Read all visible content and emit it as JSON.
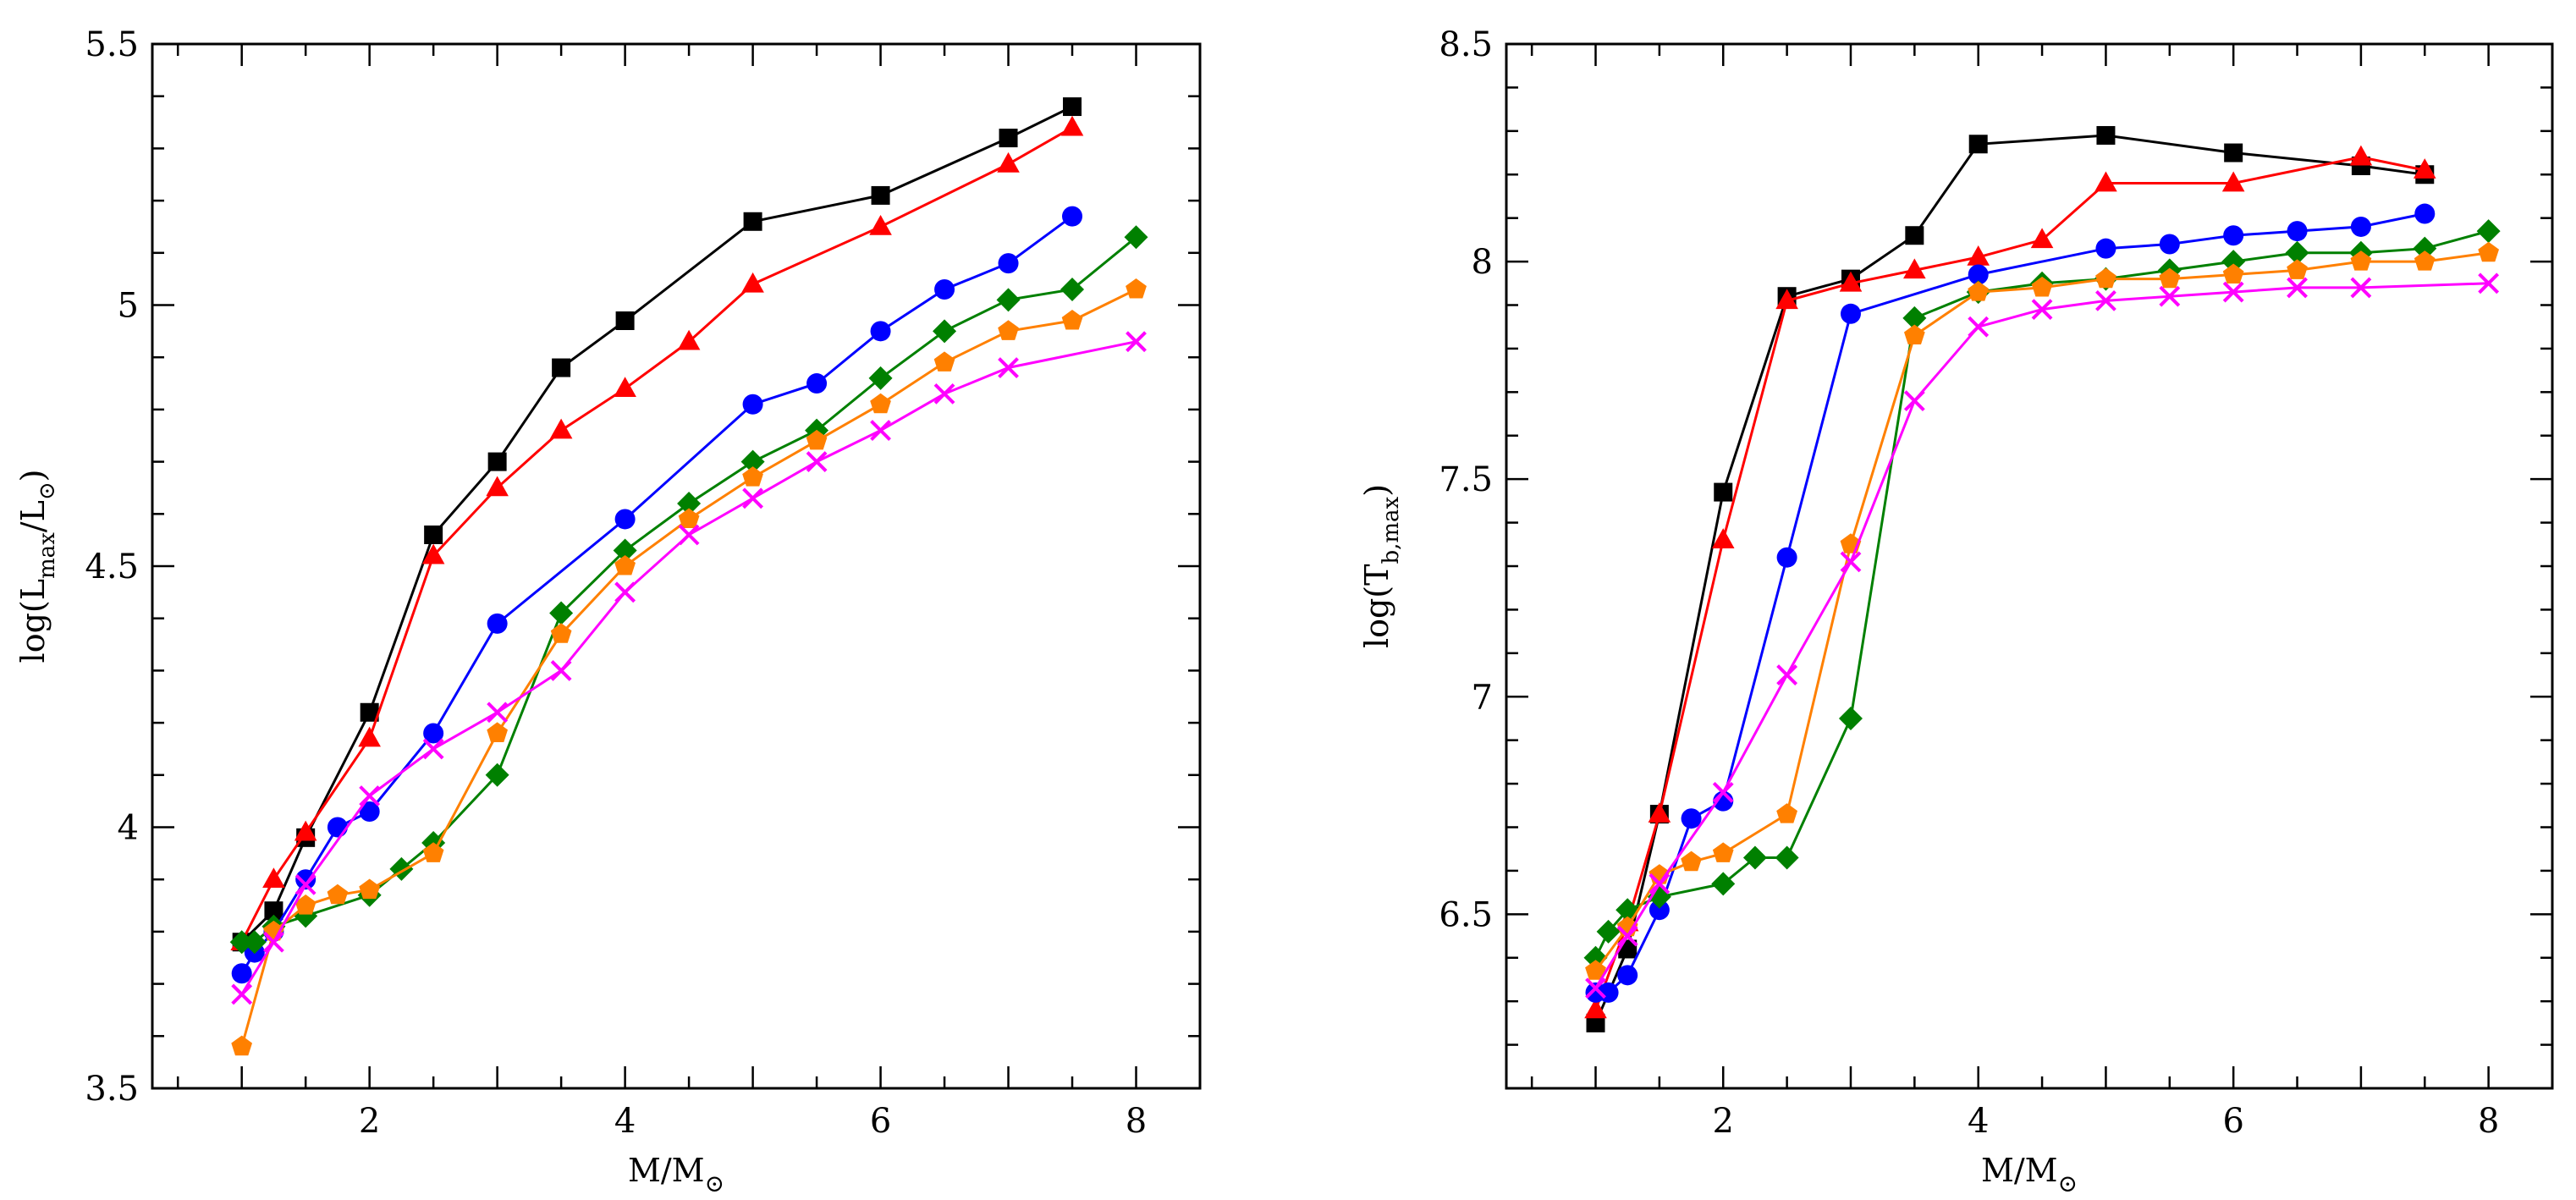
{
  "chart_data": [
    {
      "type": "line",
      "id": "left",
      "xlabel": "M/M",
      "xlabel_sub": "⊙",
      "ylabel": {
        "prefix": "log(L",
        "sub1": "max",
        "mid": "/L",
        "sub2": "⊙",
        "suffix": ")"
      },
      "xlim": [
        0.3,
        8.5
      ],
      "ylim": [
        3.5,
        5.5
      ],
      "x_major_ticks": [
        2,
        4,
        6,
        8
      ],
      "x_tick_labels": [
        "2",
        "4",
        "6",
        "8"
      ],
      "y_major_ticks": [
        3.5,
        4,
        4.5,
        5,
        5.5
      ],
      "y_tick_labels": [
        "3.5",
        "4",
        "4.5",
        "5",
        "5.5"
      ],
      "x_minor_step": 0.5,
      "y_minor_step": 0.1,
      "series": [
        {
          "name": "black-squares",
          "color": "#000000",
          "marker": "square",
          "x": [
            1.0,
            1.25,
            1.5,
            2.0,
            2.5,
            3.0,
            3.5,
            4.0,
            5.0,
            6.0,
            7.0,
            7.5
          ],
          "y": [
            3.78,
            3.84,
            3.98,
            4.22,
            4.56,
            4.7,
            4.88,
            4.97,
            5.16,
            5.21,
            5.32,
            5.38
          ]
        },
        {
          "name": "red-triangles",
          "color": "#ff0000",
          "marker": "triangle",
          "x": [
            1.0,
            1.25,
            1.5,
            2.0,
            2.5,
            3.0,
            3.5,
            4.0,
            4.5,
            5.0,
            6.0,
            7.0,
            7.5
          ],
          "y": [
            3.78,
            3.9,
            3.99,
            4.17,
            4.52,
            4.65,
            4.76,
            4.84,
            4.93,
            5.04,
            5.15,
            5.27,
            5.34
          ]
        },
        {
          "name": "blue-circles",
          "color": "#0000ff",
          "marker": "circle",
          "x": [
            1.0,
            1.1,
            1.25,
            1.5,
            1.75,
            2.0,
            2.5,
            3.0,
            4.0,
            5.0,
            5.5,
            6.0,
            6.5,
            7.0,
            7.5
          ],
          "y": [
            3.72,
            3.76,
            3.8,
            3.9,
            4.0,
            4.03,
            4.18,
            4.39,
            4.59,
            4.81,
            4.85,
            4.95,
            5.03,
            5.08,
            5.17
          ]
        },
        {
          "name": "green-diamonds",
          "color": "#008000",
          "marker": "diamond",
          "x": [
            1.0,
            1.1,
            1.25,
            1.5,
            2.0,
            2.25,
            2.5,
            3.0,
            3.5,
            4.0,
            4.5,
            5.0,
            5.5,
            6.0,
            6.5,
            7.0,
            7.5,
            8.0
          ],
          "y": [
            3.78,
            3.78,
            3.81,
            3.83,
            3.87,
            3.92,
            3.97,
            4.1,
            4.41,
            4.53,
            4.62,
            4.7,
            4.76,
            4.86,
            4.95,
            5.01,
            5.03,
            5.13
          ]
        },
        {
          "name": "orange-pentagons",
          "color": "#ff8000",
          "marker": "pentagon",
          "x": [
            1.0,
            1.25,
            1.5,
            1.75,
            2.0,
            2.5,
            3.0,
            3.5,
            4.0,
            4.5,
            5.0,
            5.5,
            6.0,
            6.5,
            7.0,
            7.5,
            8.0
          ],
          "y": [
            3.58,
            3.8,
            3.85,
            3.87,
            3.88,
            3.95,
            4.18,
            4.37,
            4.5,
            4.59,
            4.67,
            4.74,
            4.81,
            4.89,
            4.95,
            4.97,
            5.03
          ]
        },
        {
          "name": "magenta-crosses",
          "color": "#ff00ff",
          "marker": "cross",
          "x": [
            1.0,
            1.25,
            1.5,
            2.0,
            2.5,
            3.0,
            3.5,
            4.0,
            4.5,
            5.0,
            5.5,
            6.0,
            6.5,
            7.0,
            8.0
          ],
          "y": [
            3.68,
            3.78,
            3.89,
            4.06,
            4.15,
            4.22,
            4.3,
            4.45,
            4.56,
            4.63,
            4.7,
            4.76,
            4.83,
            4.88,
            4.93
          ]
        }
      ]
    },
    {
      "type": "line",
      "id": "right",
      "xlabel": "M/M",
      "xlabel_sub": "⊙",
      "ylabel": {
        "prefix": "log(T",
        "sub1": "b,max",
        "mid": "",
        "sub2": "",
        "suffix": ")"
      },
      "xlim": [
        0.3,
        8.5
      ],
      "ylim": [
        6.1,
        8.5
      ],
      "x_major_ticks": [
        2,
        4,
        6,
        8
      ],
      "x_tick_labels": [
        "2",
        "4",
        "6",
        "8"
      ],
      "y_major_ticks": [
        6.5,
        7,
        7.5,
        8,
        8.5
      ],
      "y_tick_labels": [
        "6.5",
        "7",
        "7.5",
        "8",
        "8.5"
      ],
      "x_minor_step": 0.5,
      "y_minor_step": 0.1,
      "series": [
        {
          "name": "black-squares",
          "color": "#000000",
          "marker": "square",
          "x": [
            1.0,
            1.25,
            1.5,
            2.0,
            2.5,
            3.0,
            3.5,
            4.0,
            5.0,
            6.0,
            7.0,
            7.5
          ],
          "y": [
            6.25,
            6.42,
            6.73,
            7.47,
            7.92,
            7.96,
            8.06,
            8.27,
            8.29,
            8.25,
            8.22,
            8.2
          ]
        },
        {
          "name": "red-triangles",
          "color": "#ff0000",
          "marker": "triangle",
          "x": [
            1.0,
            1.25,
            1.5,
            2.0,
            2.5,
            3.0,
            3.5,
            4.0,
            4.5,
            5.0,
            6.0,
            7.0,
            7.5
          ],
          "y": [
            6.28,
            6.48,
            6.73,
            7.36,
            7.91,
            7.95,
            7.98,
            8.01,
            8.05,
            8.18,
            8.18,
            8.24,
            8.21
          ]
        },
        {
          "name": "blue-circles",
          "color": "#0000ff",
          "marker": "circle",
          "x": [
            1.0,
            1.1,
            1.25,
            1.5,
            1.75,
            2.0,
            2.5,
            3.0,
            4.0,
            5.0,
            5.5,
            6.0,
            6.5,
            7.0,
            7.5
          ],
          "y": [
            6.32,
            6.32,
            6.36,
            6.51,
            6.72,
            6.76,
            7.32,
            7.88,
            7.97,
            8.03,
            8.04,
            8.06,
            8.07,
            8.08,
            8.11
          ]
        },
        {
          "name": "green-diamonds",
          "color": "#008000",
          "marker": "diamond",
          "x": [
            1.0,
            1.1,
            1.25,
            1.5,
            2.0,
            2.25,
            2.5,
            3.0,
            3.5,
            4.0,
            4.5,
            5.0,
            5.5,
            6.0,
            6.5,
            7.0,
            7.5,
            8.0
          ],
          "y": [
            6.4,
            6.46,
            6.51,
            6.54,
            6.57,
            6.63,
            6.63,
            6.95,
            7.87,
            7.93,
            7.95,
            7.96,
            7.98,
            8.0,
            8.02,
            8.02,
            8.03,
            8.07
          ]
        },
        {
          "name": "orange-pentagons",
          "color": "#ff8000",
          "marker": "pentagon",
          "x": [
            1.0,
            1.25,
            1.5,
            1.75,
            2.0,
            2.5,
            3.0,
            3.5,
            4.0,
            4.5,
            5.0,
            5.5,
            6.0,
            6.5,
            7.0,
            7.5,
            8.0
          ],
          "y": [
            6.37,
            6.47,
            6.59,
            6.62,
            6.64,
            6.73,
            7.35,
            7.83,
            7.93,
            7.94,
            7.96,
            7.96,
            7.97,
            7.98,
            8.0,
            8.0,
            8.02
          ]
        },
        {
          "name": "magenta-crosses",
          "color": "#ff00ff",
          "marker": "cross",
          "x": [
            1.0,
            1.25,
            1.5,
            2.0,
            2.5,
            3.0,
            3.5,
            4.0,
            4.5,
            5.0,
            5.5,
            6.0,
            6.5,
            7.0,
            8.0
          ],
          "y": [
            6.33,
            6.45,
            6.57,
            6.78,
            7.05,
            7.31,
            7.68,
            7.85,
            7.89,
            7.91,
            7.92,
            7.93,
            7.94,
            7.94,
            7.95
          ]
        }
      ]
    }
  ]
}
